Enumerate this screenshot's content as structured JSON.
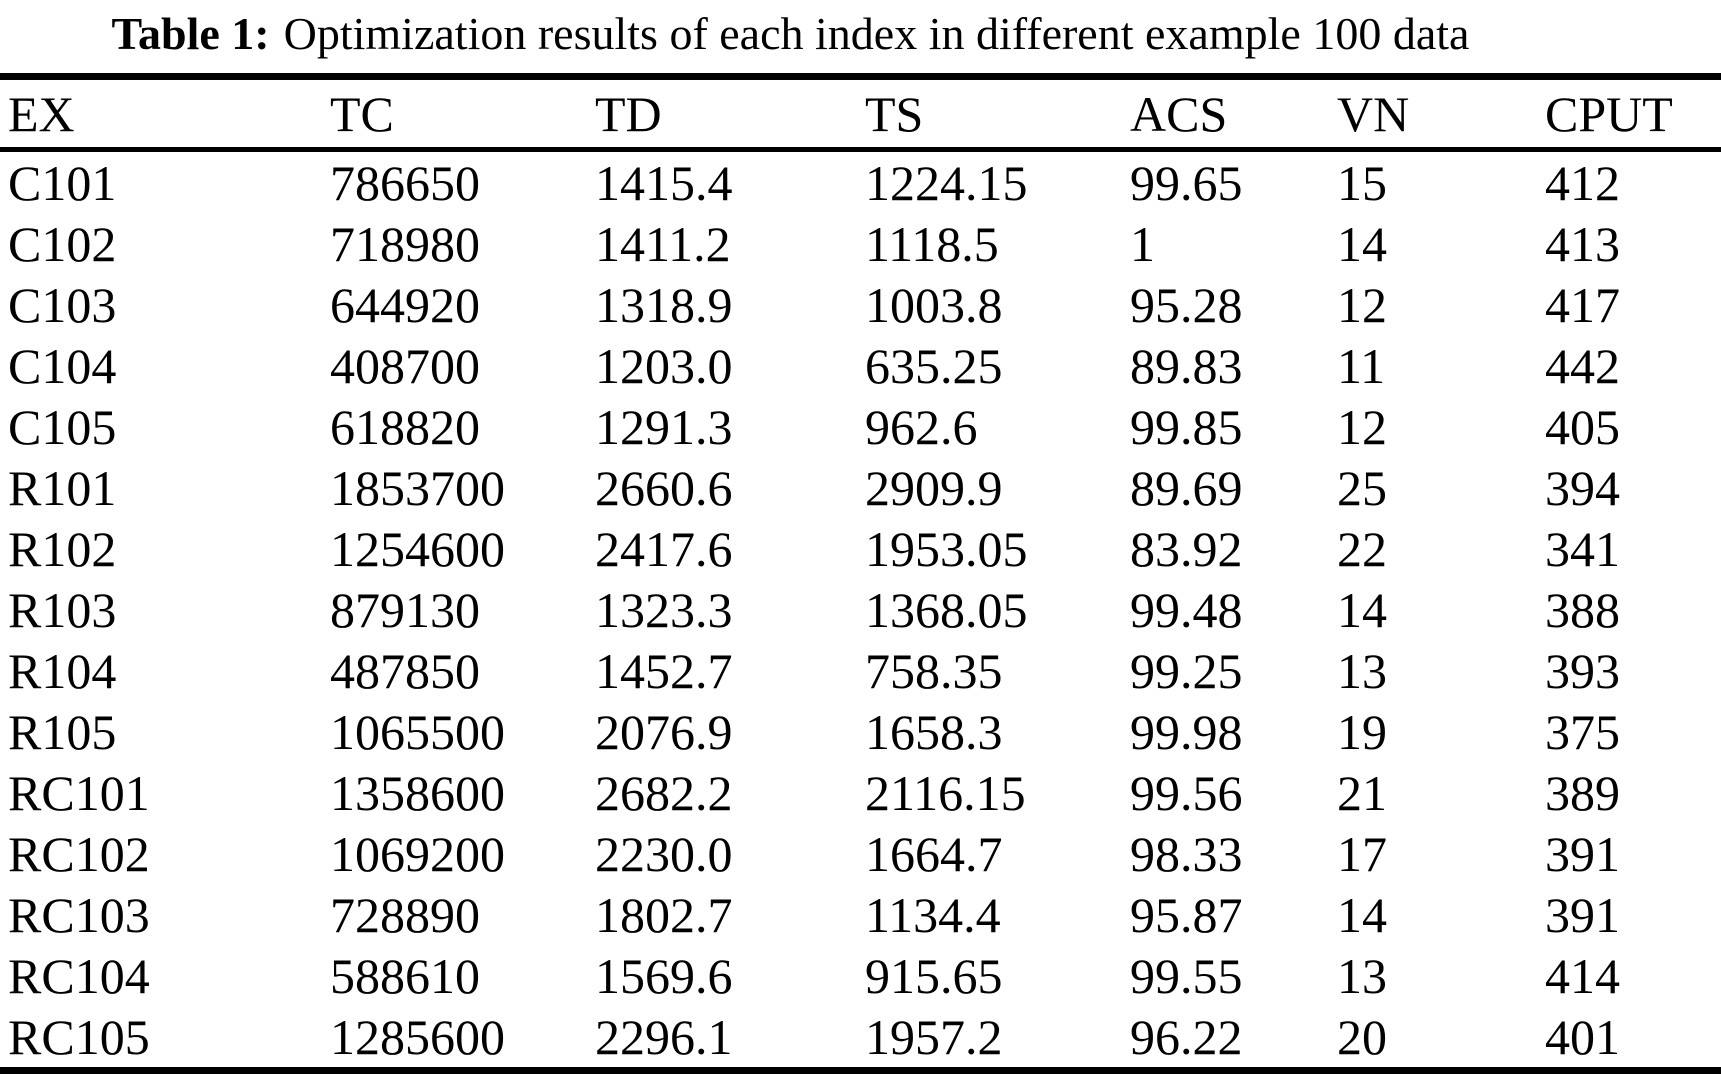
{
  "caption": {
    "label": "Table 1:",
    "text": "Optimization results of each index in different example 100 data"
  },
  "table": {
    "columns": [
      "EX",
      "TC",
      "TD",
      "TS",
      "ACS",
      "VN",
      "CPUT"
    ],
    "rows": [
      [
        "C101",
        "786650",
        "1415.4",
        "1224.15",
        "99.65",
        "15",
        "412"
      ],
      [
        "C102",
        "718980",
        "1411.2",
        "1118.5",
        "1",
        "14",
        "413"
      ],
      [
        "C103",
        "644920",
        "1318.9",
        "1003.8",
        "95.28",
        "12",
        "417"
      ],
      [
        "C104",
        "408700",
        "1203.0",
        "635.25",
        "89.83",
        "11",
        "442"
      ],
      [
        "C105",
        "618820",
        "1291.3",
        "962.6",
        "99.85",
        "12",
        "405"
      ],
      [
        "R101",
        "1853700",
        "2660.6",
        "2909.9",
        "89.69",
        "25",
        "394"
      ],
      [
        "R102",
        "1254600",
        "2417.6",
        "1953.05",
        "83.92",
        "22",
        "341"
      ],
      [
        "R103",
        "879130",
        "1323.3",
        "1368.05",
        "99.48",
        "14",
        "388"
      ],
      [
        "R104",
        "487850",
        "1452.7",
        "758.35",
        "99.25",
        "13",
        "393"
      ],
      [
        "R105",
        "1065500",
        "2076.9",
        "1658.3",
        "99.98",
        "19",
        "375"
      ],
      [
        "RC101",
        "1358600",
        "2682.2",
        "2116.15",
        "99.56",
        "21",
        "389"
      ],
      [
        "RC102",
        "1069200",
        "2230.0",
        "1664.7",
        "98.33",
        "17",
        "391"
      ],
      [
        "RC103",
        "728890",
        "1802.7",
        "1134.4",
        "95.87",
        "14",
        "391"
      ],
      [
        "RC104",
        "588610",
        "1569.6",
        "915.65",
        "99.55",
        "13",
        "414"
      ],
      [
        "RC105",
        "1285600",
        "2296.1",
        "1957.2",
        "96.22",
        "20",
        "401"
      ]
    ]
  }
}
